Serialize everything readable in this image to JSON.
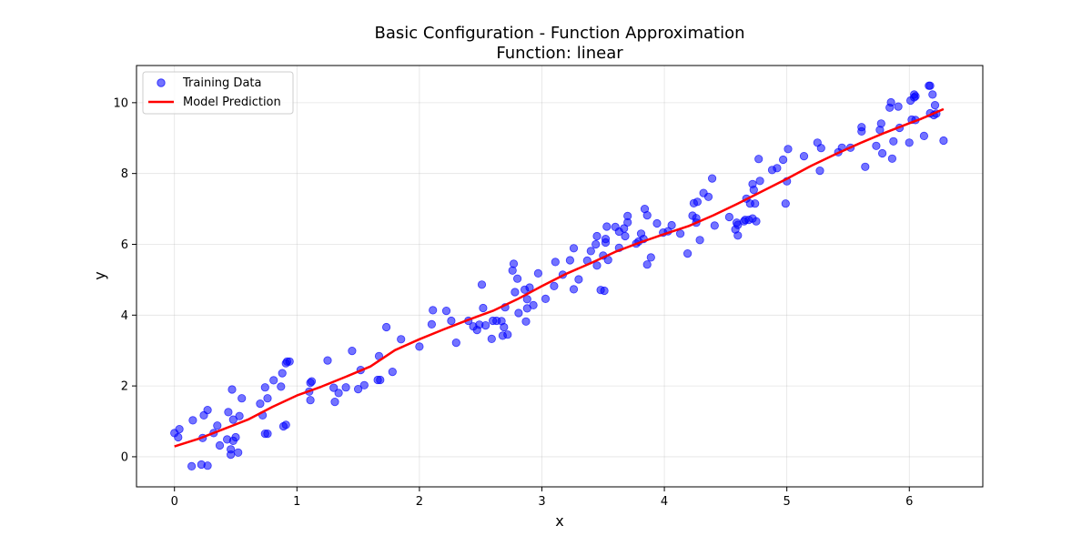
{
  "chart_data": {
    "type": "scatter",
    "title": "Basic Configuration - Function Approximation",
    "subtitle": "Function: linear",
    "xlabel": "x",
    "ylabel": "y",
    "xlim": [
      -0.31,
      6.6
    ],
    "ylim": [
      -0.85,
      11.05
    ],
    "xticks": [
      0,
      1,
      2,
      3,
      4,
      5,
      6
    ],
    "yticks": [
      0,
      2,
      4,
      6,
      8,
      10
    ],
    "grid": true,
    "legend_position": "top-left",
    "series": [
      {
        "name": "Training Data",
        "kind": "scatter",
        "color": "#0000ff",
        "points": [
          [
            0.0,
            0.67
          ],
          [
            0.03,
            0.55
          ],
          [
            0.04,
            0.78
          ],
          [
            0.14,
            -0.27
          ],
          [
            0.15,
            1.03
          ],
          [
            0.22,
            -0.22
          ],
          [
            0.23,
            0.53
          ],
          [
            0.24,
            1.17
          ],
          [
            0.27,
            -0.25
          ],
          [
            0.27,
            1.32
          ],
          [
            0.32,
            0.67
          ],
          [
            0.35,
            0.88
          ],
          [
            0.37,
            0.32
          ],
          [
            0.43,
            0.49
          ],
          [
            0.44,
            1.26
          ],
          [
            0.46,
            0.06
          ],
          [
            0.46,
            0.21
          ],
          [
            0.47,
            1.9
          ],
          [
            0.48,
            0.45
          ],
          [
            0.48,
            1.05
          ],
          [
            0.5,
            0.55
          ],
          [
            0.52,
            0.12
          ],
          [
            0.53,
            1.15
          ],
          [
            0.55,
            1.65
          ],
          [
            0.7,
            1.5
          ],
          [
            0.72,
            1.17
          ],
          [
            0.74,
            0.65
          ],
          [
            0.74,
            1.96
          ],
          [
            0.76,
            0.65
          ],
          [
            0.76,
            1.65
          ],
          [
            0.81,
            2.16
          ],
          [
            0.87,
            1.98
          ],
          [
            0.88,
            2.36
          ],
          [
            0.89,
            0.86
          ],
          [
            0.91,
            0.9
          ],
          [
            0.91,
            2.64
          ],
          [
            0.92,
            2.69
          ],
          [
            0.94,
            2.69
          ],
          [
            1.1,
            1.84
          ],
          [
            1.11,
            1.6
          ],
          [
            1.11,
            2.09
          ],
          [
            1.12,
            2.13
          ],
          [
            1.25,
            2.72
          ],
          [
            1.3,
            1.95
          ],
          [
            1.31,
            1.55
          ],
          [
            1.34,
            1.8
          ],
          [
            1.4,
            1.96
          ],
          [
            1.45,
            2.99
          ],
          [
            1.5,
            1.91
          ],
          [
            1.52,
            2.45
          ],
          [
            1.55,
            2.02
          ],
          [
            1.66,
            2.17
          ],
          [
            1.67,
            2.84
          ],
          [
            1.68,
            2.17
          ],
          [
            1.73,
            3.66
          ],
          [
            1.78,
            2.4
          ],
          [
            1.85,
            3.32
          ],
          [
            2.0,
            3.11
          ],
          [
            2.1,
            3.74
          ],
          [
            2.11,
            4.14
          ],
          [
            2.22,
            4.12
          ],
          [
            2.26,
            3.84
          ],
          [
            2.3,
            3.22
          ],
          [
            2.4,
            3.84
          ],
          [
            2.44,
            3.68
          ],
          [
            2.47,
            3.58
          ],
          [
            2.49,
            3.73
          ],
          [
            2.51,
            4.86
          ],
          [
            2.52,
            4.2
          ],
          [
            2.54,
            3.71
          ],
          [
            2.59,
            3.33
          ],
          [
            2.6,
            3.84
          ],
          [
            2.63,
            3.84
          ],
          [
            2.67,
            3.83
          ],
          [
            2.68,
            3.42
          ],
          [
            2.69,
            3.66
          ],
          [
            2.7,
            4.22
          ],
          [
            2.72,
            3.45
          ],
          [
            2.76,
            5.26
          ],
          [
            2.77,
            5.45
          ],
          [
            2.78,
            4.65
          ],
          [
            2.8,
            5.03
          ],
          [
            2.81,
            4.06
          ],
          [
            2.86,
            4.72
          ],
          [
            2.87,
            3.82
          ],
          [
            2.88,
            4.19
          ],
          [
            2.88,
            4.45
          ],
          [
            2.9,
            4.78
          ],
          [
            2.93,
            4.28
          ],
          [
            2.97,
            5.18
          ],
          [
            3.03,
            4.46
          ],
          [
            3.1,
            4.82
          ],
          [
            3.11,
            5.5
          ],
          [
            3.17,
            5.14
          ],
          [
            3.23,
            5.55
          ],
          [
            3.26,
            5.89
          ],
          [
            3.26,
            4.73
          ],
          [
            3.3,
            5.01
          ],
          [
            3.37,
            5.54
          ],
          [
            3.4,
            5.81
          ],
          [
            3.44,
            6.0
          ],
          [
            3.45,
            6.23
          ],
          [
            3.45,
            5.4
          ],
          [
            3.48,
            4.71
          ],
          [
            3.5,
            5.68
          ],
          [
            3.51,
            4.69
          ],
          [
            3.52,
            6.05
          ],
          [
            3.52,
            6.15
          ],
          [
            3.53,
            6.5
          ],
          [
            3.54,
            5.56
          ],
          [
            3.6,
            6.49
          ],
          [
            3.63,
            5.9
          ],
          [
            3.63,
            6.36
          ],
          [
            3.67,
            6.45
          ],
          [
            3.68,
            6.23
          ],
          [
            3.7,
            6.8
          ],
          [
            3.7,
            6.62
          ],
          [
            3.77,
            6.02
          ],
          [
            3.79,
            6.08
          ],
          [
            3.81,
            6.3
          ],
          [
            3.83,
            6.15
          ],
          [
            3.84,
            7.0
          ],
          [
            3.86,
            6.82
          ],
          [
            3.86,
            5.43
          ],
          [
            3.89,
            5.63
          ],
          [
            3.94,
            6.59
          ],
          [
            3.99,
            6.33
          ],
          [
            4.03,
            6.37
          ],
          [
            4.06,
            6.54
          ],
          [
            4.13,
            6.3
          ],
          [
            4.19,
            5.74
          ],
          [
            4.23,
            6.81
          ],
          [
            4.24,
            7.16
          ],
          [
            4.26,
            6.74
          ],
          [
            4.26,
            6.61
          ],
          [
            4.27,
            7.2
          ],
          [
            4.29,
            6.12
          ],
          [
            4.32,
            7.45
          ],
          [
            4.36,
            7.34
          ],
          [
            4.39,
            7.86
          ],
          [
            4.41,
            6.53
          ],
          [
            4.53,
            6.77
          ],
          [
            4.58,
            6.42
          ],
          [
            4.59,
            6.61
          ],
          [
            4.6,
            6.25
          ],
          [
            4.6,
            6.55
          ],
          [
            4.65,
            6.65
          ],
          [
            4.66,
            6.69
          ],
          [
            4.67,
            7.29
          ],
          [
            4.69,
            6.69
          ],
          [
            4.7,
            7.15
          ],
          [
            4.72,
            6.73
          ],
          [
            4.72,
            7.7
          ],
          [
            4.73,
            7.54
          ],
          [
            4.74,
            7.15
          ],
          [
            4.75,
            6.65
          ],
          [
            4.77,
            8.41
          ],
          [
            4.78,
            7.79
          ],
          [
            4.88,
            8.1
          ],
          [
            4.92,
            8.15
          ],
          [
            4.97,
            8.39
          ],
          [
            4.99,
            7.15
          ],
          [
            5.0,
            7.78
          ],
          [
            5.01,
            8.69
          ],
          [
            5.14,
            8.49
          ],
          [
            5.25,
            8.87
          ],
          [
            5.27,
            8.08
          ],
          [
            5.28,
            8.72
          ],
          [
            5.42,
            8.6
          ],
          [
            5.45,
            8.73
          ],
          [
            5.52,
            8.73
          ],
          [
            5.61,
            9.19
          ],
          [
            5.61,
            9.31
          ],
          [
            5.64,
            8.19
          ],
          [
            5.73,
            8.78
          ],
          [
            5.76,
            9.23
          ],
          [
            5.77,
            9.41
          ],
          [
            5.78,
            8.57
          ],
          [
            5.84,
            9.86
          ],
          [
            5.85,
            10.01
          ],
          [
            5.86,
            8.42
          ],
          [
            5.87,
            8.91
          ],
          [
            5.91,
            9.89
          ],
          [
            5.92,
            9.29
          ],
          [
            6.0,
            8.87
          ],
          [
            6.01,
            10.06
          ],
          [
            6.02,
            9.52
          ],
          [
            6.04,
            10.15
          ],
          [
            6.04,
            10.23
          ],
          [
            6.05,
            9.51
          ],
          [
            6.05,
            10.18
          ],
          [
            6.12,
            9.06
          ],
          [
            6.16,
            10.48
          ],
          [
            6.17,
            10.48
          ],
          [
            6.17,
            9.7
          ],
          [
            6.19,
            10.23
          ],
          [
            6.2,
            9.65
          ],
          [
            6.21,
            9.93
          ],
          [
            6.22,
            9.69
          ],
          [
            6.28,
            8.93
          ]
        ]
      },
      {
        "name": "Model Prediction",
        "kind": "line",
        "color": "#ff0000",
        "points": [
          [
            0.0,
            0.29
          ],
          [
            0.2,
            0.51
          ],
          [
            0.4,
            0.78
          ],
          [
            0.6,
            1.05
          ],
          [
            0.8,
            1.41
          ],
          [
            1.0,
            1.73
          ],
          [
            1.2,
            1.98
          ],
          [
            1.4,
            2.26
          ],
          [
            1.6,
            2.55
          ],
          [
            1.8,
            3.01
          ],
          [
            2.0,
            3.32
          ],
          [
            2.2,
            3.6
          ],
          [
            2.4,
            3.87
          ],
          [
            2.6,
            4.12
          ],
          [
            2.8,
            4.45
          ],
          [
            3.0,
            4.82
          ],
          [
            3.2,
            5.17
          ],
          [
            3.4,
            5.47
          ],
          [
            3.6,
            5.79
          ],
          [
            3.8,
            6.05
          ],
          [
            4.0,
            6.29
          ],
          [
            4.2,
            6.52
          ],
          [
            4.4,
            6.82
          ],
          [
            4.6,
            7.15
          ],
          [
            4.8,
            7.5
          ],
          [
            5.0,
            7.85
          ],
          [
            5.2,
            8.22
          ],
          [
            5.4,
            8.55
          ],
          [
            5.6,
            8.86
          ],
          [
            5.8,
            9.15
          ],
          [
            6.0,
            9.42
          ],
          [
            6.1,
            9.55
          ],
          [
            6.28,
            9.82
          ]
        ]
      }
    ]
  }
}
